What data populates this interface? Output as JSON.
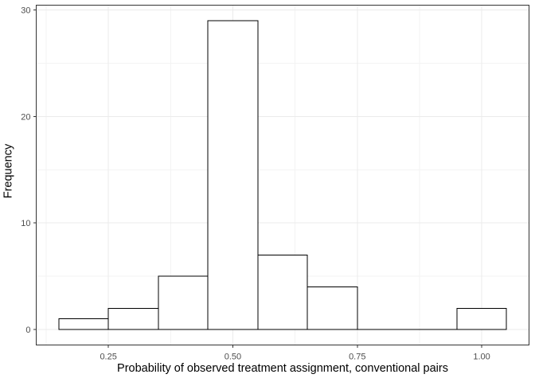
{
  "chart_data": {
    "type": "bar",
    "subtype": "histogram",
    "title": "",
    "xlabel": "Probability of observed treatment assignment, conventional pairs",
    "ylabel": "Frequency",
    "bin_edges": [
      0.15,
      0.25,
      0.35,
      0.45,
      0.55,
      0.65,
      0.75,
      0.85,
      0.95,
      1.05
    ],
    "counts": [
      1,
      2,
      5,
      29,
      7,
      4,
      0,
      0,
      2
    ],
    "x_axis": {
      "domain": [
        0.105,
        1.095
      ],
      "ticks": [
        0.25,
        0.5,
        0.75,
        1.0
      ],
      "tick_labels": [
        "0.25",
        "0.50",
        "0.75",
        "1.00"
      ],
      "minor_ticks": [
        0.125,
        0.375,
        0.625,
        0.875
      ]
    },
    "y_axis": {
      "domain": [
        -1.45,
        30.45
      ],
      "ticks": [
        0,
        10,
        20,
        30
      ],
      "tick_labels": [
        "0",
        "10",
        "20",
        "30"
      ],
      "minor_ticks": [
        5,
        15,
        25
      ]
    },
    "grid": "major and minor, horizontal and vertical",
    "legend": "none",
    "colors": {
      "background": "#ffffff",
      "panel_background": "#ffffff",
      "bar_fill": "#ffffff",
      "bar_stroke": "#000000",
      "grid_major": "#ebebeb",
      "grid_minor": "#f3f3f3",
      "panel_border": "#333333",
      "tick_mark": "#333333",
      "tick_label": "#4d4d4d",
      "axis_title": "#000000"
    }
  }
}
